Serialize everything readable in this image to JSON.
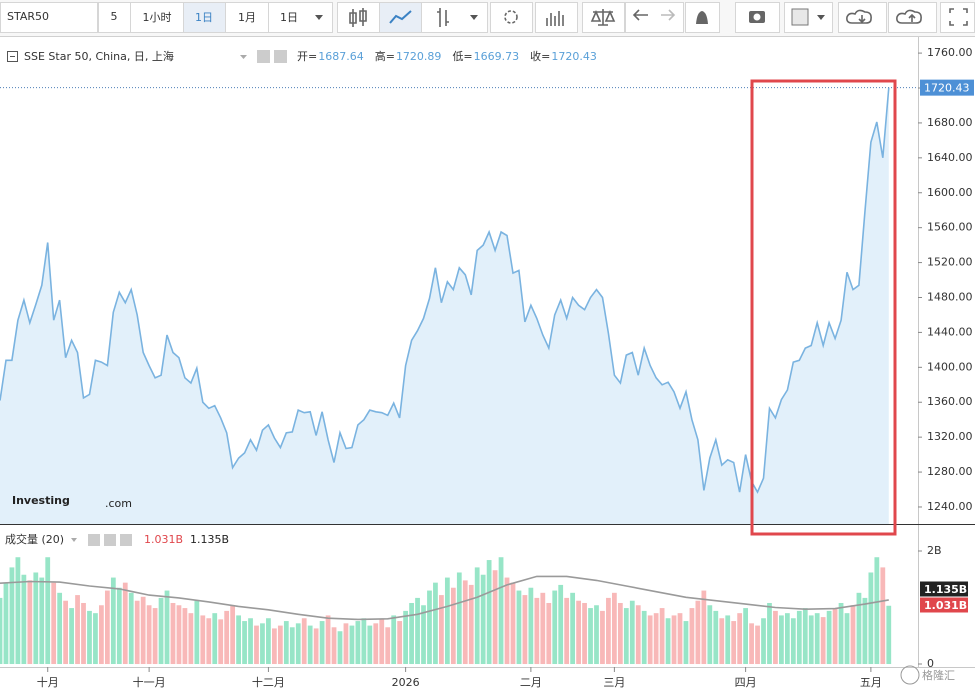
{
  "toolbar": {
    "symbol": "STAR50",
    "quantity": "5",
    "intervals": [
      "1小时",
      "1日",
      "1月",
      "1日"
    ]
  },
  "watermarks": {
    "brand": "Investing",
    "brand_suffix": ".com",
    "source": "格隆汇"
  },
  "chart_data": [
    {
      "type": "area",
      "title": "SSE Star 50, China, 日, 上海",
      "color": "#7ab3e0",
      "fill": "#e2f0fa",
      "legend_items": [
        {
          "label": "开=",
          "value": 1687.64
        },
        {
          "label": "高=",
          "value": 1720.89
        },
        {
          "label": "低=",
          "value": 1669.73
        },
        {
          "label": "收=",
          "value": 1720.43
        }
      ],
      "values": [
        1362,
        1408,
        1408,
        1454,
        1477,
        1451,
        1472,
        1494,
        1543,
        1454,
        1477,
        1411,
        1431,
        1417,
        1365,
        1369,
        1408,
        1406,
        1402,
        1463,
        1486,
        1474,
        1489,
        1460,
        1417,
        1402,
        1388,
        1391,
        1437,
        1417,
        1411,
        1388,
        1382,
        1399,
        1360,
        1353,
        1356,
        1342,
        1325,
        1285,
        1296,
        1302,
        1317,
        1305,
        1328,
        1334,
        1319,
        1308,
        1325,
        1326,
        1351,
        1348,
        1349,
        1322,
        1349,
        1317,
        1291,
        1325,
        1307,
        1308,
        1334,
        1340,
        1351,
        1349,
        1348,
        1345,
        1359,
        1342,
        1402,
        1431,
        1442,
        1456,
        1479,
        1514,
        1474,
        1498,
        1489,
        1514,
        1506,
        1483,
        1534,
        1540,
        1555,
        1534,
        1555,
        1551,
        1508,
        1511,
        1452,
        1471,
        1456,
        1437,
        1422,
        1460,
        1477,
        1456,
        1480,
        1471,
        1466,
        1480,
        1489,
        1480,
        1439,
        1391,
        1382,
        1414,
        1417,
        1391,
        1422,
        1402,
        1388,
        1380,
        1383,
        1372,
        1353,
        1372,
        1340,
        1317,
        1259,
        1296,
        1317,
        1288,
        1294,
        1291,
        1257,
        1300,
        1269,
        1257,
        1273,
        1353,
        1342,
        1363,
        1374,
        1406,
        1408,
        1422,
        1425,
        1451,
        1425,
        1451,
        1433,
        1454,
        1509,
        1489,
        1494,
        1578,
        1658,
        1681,
        1640,
        1720.43
      ],
      "last_value": 1720.43,
      "xlim": [
        0,
        153.9
      ],
      "ylim": [
        1220.5,
        1775
      ],
      "yticks": [
        {
          "value": 1240,
          "label": "1240.00"
        },
        {
          "value": 1280,
          "label": "1280.00"
        },
        {
          "value": 1320,
          "label": "1320.00"
        },
        {
          "value": 1360,
          "label": "1360.00"
        },
        {
          "value": 1400,
          "label": "1400.00"
        },
        {
          "value": 1440,
          "label": "1440.00"
        },
        {
          "value": 1480,
          "label": "1480.00"
        },
        {
          "value": 1520,
          "label": "1520.00"
        },
        {
          "value": 1560,
          "label": "1560.00"
        },
        {
          "value": 1600,
          "label": "1600.00"
        },
        {
          "value": 1640,
          "label": "1640.00"
        },
        {
          "value": 1680,
          "label": "1680.00"
        },
        {
          "value": 1720,
          "label": "1720.00"
        },
        {
          "value": 1760,
          "label": "1760.00"
        }
      ]
    },
    {
      "type": "bar",
      "title": "成交量 (20)",
      "up_color": "#97e5c7",
      "down_color": "#f8b8b8",
      "values": [
        1.17,
        1.44,
        1.71,
        1.89,
        1.58,
        1.48,
        1.62,
        1.53,
        1.89,
        1.44,
        1.26,
        1.12,
        0.99,
        1.22,
        1.08,
        0.94,
        0.9,
        1.04,
        1.3,
        1.53,
        1.35,
        1.44,
        1.26,
        1.12,
        1.19,
        1.04,
        0.99,
        1.17,
        1.3,
        1.08,
        1.04,
        0.99,
        0.9,
        1.12,
        0.86,
        0.81,
        0.9,
        0.79,
        0.94,
        1.04,
        0.86,
        0.76,
        0.81,
        0.68,
        0.72,
        0.81,
        0.63,
        0.68,
        0.76,
        0.65,
        0.72,
        0.81,
        0.68,
        0.63,
        0.76,
        0.86,
        0.65,
        0.58,
        0.72,
        0.68,
        0.76,
        0.81,
        0.68,
        0.72,
        0.79,
        0.65,
        0.86,
        0.76,
        0.94,
        1.08,
        1.17,
        1.04,
        1.3,
        1.44,
        1.22,
        1.53,
        1.35,
        1.62,
        1.48,
        1.4,
        1.71,
        1.58,
        1.84,
        1.66,
        1.89,
        1.53,
        1.44,
        1.3,
        1.22,
        1.35,
        1.17,
        1.26,
        1.08,
        1.3,
        1.4,
        1.17,
        1.26,
        1.12,
        1.08,
        0.99,
        1.04,
        0.94,
        1.17,
        1.26,
        1.08,
        0.99,
        1.12,
        1.04,
        0.94,
        0.86,
        0.9,
        0.99,
        0.81,
        0.86,
        0.9,
        0.76,
        0.99,
        1.12,
        1.3,
        1.04,
        0.94,
        0.81,
        0.86,
        0.76,
        0.9,
        0.99,
        0.72,
        0.68,
        0.81,
        1.08,
        0.94,
        0.86,
        0.9,
        0.81,
        0.94,
        0.99,
        0.86,
        0.9,
        0.83,
        0.94,
        0.99,
        1.08,
        0.9,
        1.04,
        1.26,
        1.17,
        1.62,
        1.89,
        1.71,
        1.031
      ],
      "ma": {
        "color": "#9a9a9a",
        "x": [
          0,
          5,
          10,
          15,
          20,
          25,
          30,
          35,
          40,
          45,
          50,
          55,
          60,
          65,
          70,
          75,
          80,
          85,
          90,
          95,
          100,
          105,
          110,
          115,
          120,
          125,
          130,
          135,
          140,
          145,
          149
        ],
        "values": [
          1.43,
          1.46,
          1.45,
          1.38,
          1.33,
          1.22,
          1.17,
          1.1,
          1.02,
          0.96,
          0.88,
          0.81,
          0.79,
          0.8,
          0.88,
          1.02,
          1.18,
          1.4,
          1.55,
          1.55,
          1.48,
          1.38,
          1.28,
          1.18,
          1.12,
          1.06,
          1.0,
          0.97,
          0.98,
          1.06,
          1.135
        ]
      },
      "legend_values": [
        {
          "value": 1.031,
          "label": "1.031B",
          "color": "#e0474c"
        },
        {
          "value": 1.135,
          "label": "1.135B",
          "color": "#222222"
        }
      ],
      "xlim": [
        0,
        153.9
      ],
      "ylim": [
        -0.053,
        2.425
      ],
      "yticks": [
        0,
        {
          "value": 2,
          "label": "2B"
        }
      ],
      "xticks": [
        {
          "value": 8,
          "label": "十月"
        },
        {
          "value": 25,
          "label": "十一月"
        },
        {
          "value": 45,
          "label": "十二月"
        },
        {
          "value": 68,
          "label": "2026"
        },
        {
          "value": 89,
          "label": "二月"
        },
        {
          "value": 103,
          "label": "三月"
        },
        {
          "value": 125,
          "label": "四月"
        },
        {
          "value": 146,
          "label": "五月"
        }
      ]
    }
  ]
}
